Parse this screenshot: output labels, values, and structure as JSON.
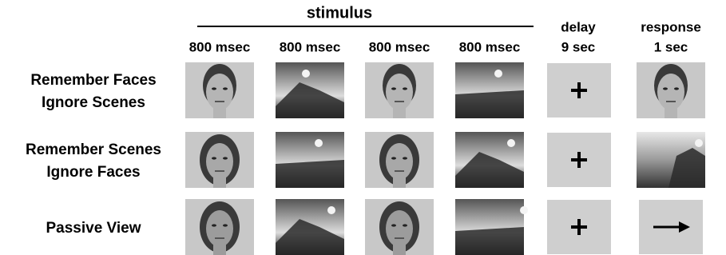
{
  "header": {
    "stimulus": "stimulus",
    "stimulus_durations": [
      "800 msec",
      "800 msec",
      "800 msec",
      "800 msec"
    ],
    "delay": {
      "title": "delay",
      "duration": "9 sec"
    },
    "response": {
      "title": "response",
      "duration": "1 sec"
    }
  },
  "rows": [
    {
      "label": [
        "Remember Faces",
        "Ignore Scenes"
      ]
    },
    {
      "label": [
        "Remember Scenes",
        "Ignore Faces"
      ]
    },
    {
      "label": [
        "Passive View"
      ]
    }
  ]
}
